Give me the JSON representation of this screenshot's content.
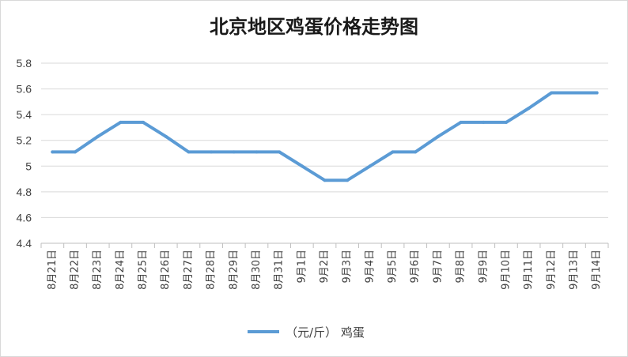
{
  "chart_data": {
    "type": "line",
    "title": "北京地区鸡蛋价格走势图",
    "categories": [
      "8月21日",
      "8月22日",
      "8月23日",
      "8月24日",
      "8月25日",
      "8月26日",
      "8月27日",
      "8月28日",
      "8月29日",
      "8月30日",
      "8月31日",
      "9月1日",
      "9月2日",
      "9月3日",
      "9月4日",
      "9月5日",
      "9月6日",
      "9月7日",
      "9月8日",
      "9月9日",
      "9月10日",
      "9月11日",
      "9月12日",
      "9月13日",
      "9月14日"
    ],
    "series": [
      {
        "name": "（元/斤） 鸡蛋",
        "color": "#5b9bd5",
        "values": [
          5.11,
          5.11,
          5.23,
          5.34,
          5.34,
          5.23,
          5.11,
          5.11,
          5.11,
          5.11,
          5.11,
          5.0,
          4.89,
          4.89,
          5.0,
          5.11,
          5.11,
          5.23,
          5.34,
          5.34,
          5.34,
          5.45,
          5.57,
          5.57,
          5.57
        ]
      }
    ],
    "yticks": [
      "4.4",
      "4.6",
      "4.8",
      "5",
      "5.2",
      "5.4",
      "5.6",
      "5.8"
    ],
    "ylim": [
      4.4,
      5.8
    ],
    "grid": true,
    "legend_position": "bottom"
  }
}
